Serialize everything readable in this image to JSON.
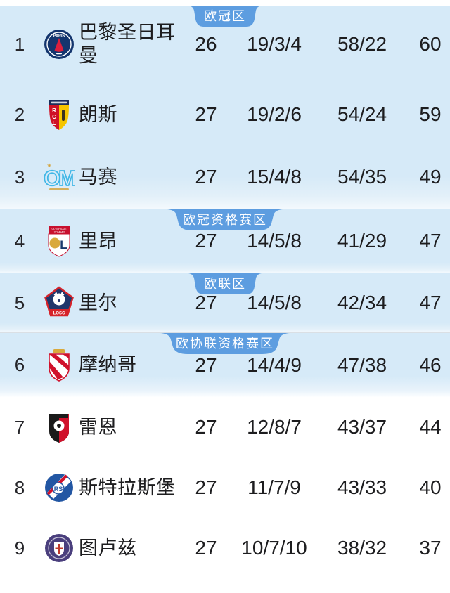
{
  "colors": {
    "section_bg": "#d6eaf8",
    "zone_chip_bg": "#5d9de0",
    "zone_chip_text": "#ffffff",
    "row_text": "#1d1d1f",
    "separator": "#dadfe4"
  },
  "table": {
    "sections": [
      {
        "zone_label": "欧冠区",
        "rows": [
          {
            "rank": "1",
            "team": "巴黎圣日耳曼",
            "logo": {
              "name": "psg-crest",
              "shape": "circle-tower",
              "colors": [
                "#14356e",
                "#da1f3d",
                "#ffffff"
              ]
            },
            "played": "26",
            "win_draw_loss": "19/3/4",
            "goals_for_against": "58/22",
            "points": "60"
          },
          {
            "rank": "2",
            "team": "朗斯",
            "logo": {
              "name": "lens-crest",
              "shape": "shield-split",
              "colors": [
                "#cf1126",
                "#f6c500",
                "#1b2d5b"
              ]
            },
            "played": "27",
            "win_draw_loss": "19/2/6",
            "goals_for_against": "54/24",
            "points": "59"
          },
          {
            "rank": "3",
            "team": "马赛",
            "logo": {
              "name": "marseille-crest",
              "shape": "monogram",
              "colors": [
                "#41b7e6",
                "#ffffff",
                "#d4a53f"
              ]
            },
            "played": "27",
            "win_draw_loss": "15/4/8",
            "goals_for_against": "54/35",
            "points": "49"
          }
        ]
      },
      {
        "zone_label": "欧冠资格赛区",
        "rows": [
          {
            "rank": "4",
            "team": "里昂",
            "logo": {
              "name": "lyon-crest",
              "shape": "shield-banner",
              "colors": [
                "#ffffff",
                "#c8102e",
                "#1b3a6d",
                "#d9a93c"
              ]
            },
            "played": "27",
            "win_draw_loss": "14/5/8",
            "goals_for_against": "41/29",
            "points": "47"
          }
        ]
      },
      {
        "zone_label": "欧联区",
        "rows": [
          {
            "rank": "5",
            "team": "里尔",
            "logo": {
              "name": "lille-crest",
              "shape": "pentagon",
              "colors": [
                "#20366b",
                "#d6232a",
                "#ffffff"
              ]
            },
            "played": "27",
            "win_draw_loss": "14/5/8",
            "goals_for_against": "42/34",
            "points": "47"
          }
        ]
      },
      {
        "zone_label": "欧协联资格赛区",
        "rows": [
          {
            "rank": "6",
            "team": "摩纳哥",
            "logo": {
              "name": "monaco-crest",
              "shape": "shield-diag",
              "colors": [
                "#ffffff",
                "#d0112b",
                "#d9a93c"
              ]
            },
            "played": "27",
            "win_draw_loss": "14/4/9",
            "goals_for_against": "47/38",
            "points": "46"
          }
        ]
      },
      {
        "zone_label": null,
        "rows": [
          {
            "rank": "7",
            "team": "雷恩",
            "logo": {
              "name": "rennes-crest",
              "shape": "shield-stripes",
              "colors": [
                "#1a1a1a",
                "#d0112b",
                "#ffffff"
              ]
            },
            "played": "27",
            "win_draw_loss": "12/8/7",
            "goals_for_against": "43/37",
            "points": "44"
          },
          {
            "rank": "8",
            "team": "斯特拉斯堡",
            "logo": {
              "name": "strasbourg-crest",
              "shape": "circle-band",
              "colors": [
                "#2256a3",
                "#ffffff",
                "#d0112b"
              ]
            },
            "played": "27",
            "win_draw_loss": "11/7/9",
            "goals_for_against": "43/33",
            "points": "40"
          },
          {
            "rank": "9",
            "team": "图卢兹",
            "logo": {
              "name": "toulouse-crest",
              "shape": "circle-emblem",
              "colors": [
                "#4a3f7d",
                "#ffffff",
                "#c0392b"
              ]
            },
            "played": "27",
            "win_draw_loss": "10/7/10",
            "goals_for_against": "38/32",
            "points": "37"
          }
        ]
      }
    ]
  }
}
